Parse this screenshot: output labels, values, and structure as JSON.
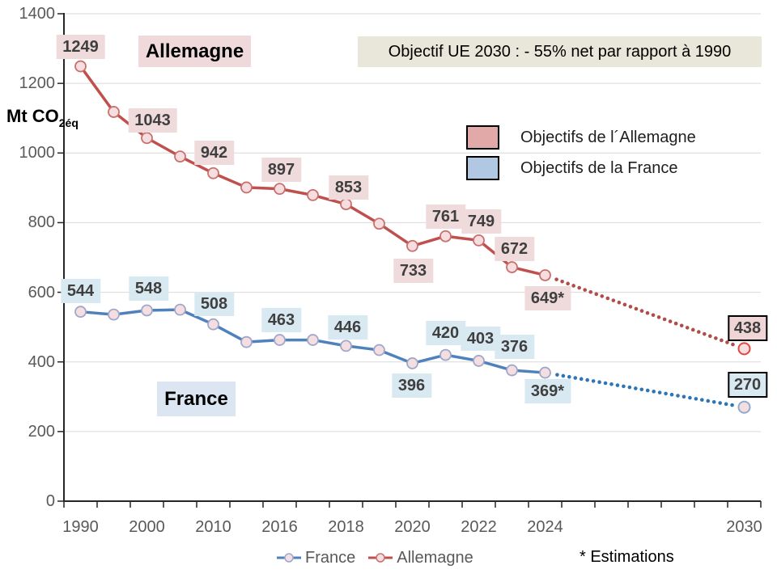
{
  "chart_data": {
    "type": "line",
    "ylabel": {
      "main": "Mt CO",
      "sub": "2éq"
    },
    "ylim": [
      0,
      1400
    ],
    "y_ticks": [
      0,
      200,
      400,
      600,
      800,
      1000,
      1200,
      1400
    ],
    "grid": "horizontal",
    "categories": [
      "1990",
      "1995",
      "2000",
      "2005",
      "2010",
      "2015",
      "2016",
      "2017",
      "2018",
      "2019",
      "2020",
      "2021",
      "2022",
      "2023",
      "2024",
      "2025",
      "2026",
      "2027",
      "2028",
      "2029",
      "2030"
    ],
    "x_tick_labels": [
      {
        "slot": 0,
        "label": "1990"
      },
      {
        "slot": 2,
        "label": "2000"
      },
      {
        "slot": 4,
        "label": "2010"
      },
      {
        "slot": 6,
        "label": "2016"
      },
      {
        "slot": 8,
        "label": "2018"
      },
      {
        "slot": 10,
        "label": "2020"
      },
      {
        "slot": 12,
        "label": "2022"
      },
      {
        "slot": 14,
        "label": "2024"
      },
      {
        "slot": 20,
        "label": "2030"
      }
    ],
    "series": [
      {
        "name": "Allemagne",
        "line_color": "#bf504d",
        "marker_fill": "#f6dee0",
        "marker_stroke": "#c9706c",
        "dotted_color": "#b14c48",
        "target_marker_stroke": "#e0483e",
        "label_bg": "#f0dbdc",
        "target_bg": "#efd5d6",
        "points": [
          {
            "slot": 0,
            "value": 1249,
            "label": "1249",
            "dx": 0,
            "dy": -24
          },
          {
            "slot": 1,
            "value": 1118,
            "estimated_from_plot": true
          },
          {
            "slot": 2,
            "value": 1043,
            "label": "1043",
            "dx": 7,
            "dy": -22
          },
          {
            "slot": 3,
            "value": 990,
            "estimated_from_plot": true
          },
          {
            "slot": 4,
            "value": 942,
            "label": "942",
            "dx": 1,
            "dy": -25
          },
          {
            "slot": 5,
            "value": 901,
            "estimated_from_plot": true
          },
          {
            "slot": 6,
            "value": 897,
            "label": "897",
            "dx": 2,
            "dy": -24
          },
          {
            "slot": 7,
            "value": 879,
            "estimated_from_plot": true
          },
          {
            "slot": 8,
            "value": 853,
            "label": "853",
            "dx": 3,
            "dy": -21
          },
          {
            "slot": 9,
            "value": 797,
            "estimated_from_plot": true
          },
          {
            "slot": 10,
            "value": 733,
            "label": "733",
            "dx": 1,
            "dy": 31
          },
          {
            "slot": 11,
            "value": 761,
            "label": "761",
            "dx": 0,
            "dy": -24
          },
          {
            "slot": 12,
            "value": 749,
            "label": "749",
            "dx": 3,
            "dy": -23
          },
          {
            "slot": 13,
            "value": 672,
            "label": "672",
            "dx": 3,
            "dy": -23
          },
          {
            "slot": 14,
            "value": 649,
            "label": "649*",
            "dx": 3,
            "dy": 29
          }
        ],
        "target": {
          "slot": 20,
          "value": 438,
          "label": "438",
          "dx": 4,
          "dy": -25
        }
      },
      {
        "name": "France",
        "line_color": "#4f81bd",
        "marker_fill": "#f4dee0",
        "marker_stroke": "#9fa8cc",
        "dotted_color": "#2e75b6",
        "target_marker_stroke": "#93a9ce",
        "label_bg": "#d9e9f2",
        "target_bg": "#d8e9f1",
        "points": [
          {
            "slot": 0,
            "value": 544,
            "label": "544",
            "dx": 0,
            "dy": -26
          },
          {
            "slot": 1,
            "value": 536,
            "estimated_from_plot": true
          },
          {
            "slot": 2,
            "value": 548,
            "label": "548",
            "dx": 2,
            "dy": -27
          },
          {
            "slot": 3,
            "value": 550,
            "estimated_from_plot": true
          },
          {
            "slot": 4,
            "value": 508,
            "label": "508",
            "dx": 1,
            "dy": -25
          },
          {
            "slot": 5,
            "value": 457,
            "estimated_from_plot": true
          },
          {
            "slot": 6,
            "value": 463,
            "label": "463",
            "dx": 2,
            "dy": -25
          },
          {
            "slot": 7,
            "value": 463,
            "estimated_from_plot": true
          },
          {
            "slot": 8,
            "value": 446,
            "label": "446",
            "dx": 2,
            "dy": -23
          },
          {
            "slot": 9,
            "value": 434,
            "estimated_from_plot": true
          },
          {
            "slot": 10,
            "value": 396,
            "label": "396",
            "dx": -1,
            "dy": 28
          },
          {
            "slot": 11,
            "value": 420,
            "label": "420",
            "dx": 0,
            "dy": -27
          },
          {
            "slot": 12,
            "value": 403,
            "label": "403",
            "dx": 2,
            "dy": -27
          },
          {
            "slot": 13,
            "value": 376,
            "label": "376",
            "dx": 3,
            "dy": -29
          },
          {
            "slot": 14,
            "value": 369,
            "label": "369*",
            "dx": 3,
            "dy": 23
          }
        ],
        "target": {
          "slot": 20,
          "value": 270,
          "label": "270",
          "dx": 4,
          "dy": -28
        }
      }
    ],
    "annotations": {
      "allemagne_title": {
        "text": "Allemagne",
        "bg": "#efd9da"
      },
      "france_title": {
        "text": "France",
        "bg": "#dce6f2"
      },
      "objective_banner": {
        "text": "Objectif UE 2030 : - 55% net par rapport à 1990",
        "bg": "#e8e7d9"
      },
      "estimations_note": {
        "text": "* Estimations"
      }
    },
    "legend": {
      "position": "inside-top-right",
      "items": [
        {
          "label": "Objectifs de l´Allemagne",
          "swatch": "#e2a9a9"
        },
        {
          "label": "Objectifs de la France",
          "swatch": "#b1c8e2"
        }
      ]
    },
    "bottom_legend": [
      {
        "label": "France",
        "series": "France"
      },
      {
        "label": "Allemagne",
        "series": "Allemagne"
      }
    ],
    "axis_colors": {
      "axis": "#262626",
      "grid": "#d9d9d9",
      "tick_text": "#595959",
      "data_label_text": "#3f3f3f"
    }
  }
}
